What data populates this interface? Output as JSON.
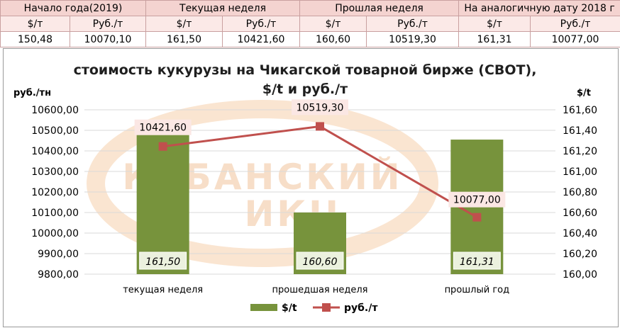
{
  "summary_table": {
    "groups": [
      "Начало года(2019)",
      "Текущая неделя",
      "Прошлая неделя",
      "На аналогичную дату 2018 г"
    ],
    "subheaders": [
      "$/т",
      "Руб./т",
      "$/т",
      "Руб./т",
      "$/т",
      "Руб./т",
      "$/т",
      "Руб./т"
    ],
    "values": [
      "150,48",
      "10070,10",
      "161,50",
      "10421,60",
      "160,60",
      "10519,30",
      "161,31",
      "10077,00"
    ]
  },
  "watermark": {
    "line1": "КУБАНСКИЙ",
    "line2": "ИКЦ"
  },
  "colors": {
    "bar": "#77933c",
    "line": "#c0504d",
    "label_bg": "#fbe7e4"
  },
  "chart_data": {
    "type": "bar",
    "title": "стоимость кукурузы на Чикагской товарной бирже (CBOT), $/t и руб./т",
    "title_lines": [
      "стоимость кукурузы на Чикагской товарной бирже (CBOT),",
      "$/t и руб./т"
    ],
    "left_axis_unit": "руб./тн",
    "right_axis_unit": "$/t",
    "categories": [
      "текущая неделя",
      "прошедшая неделя",
      "прошлый год"
    ],
    "series": [
      {
        "name": "$/t",
        "type": "bar",
        "axis": "right",
        "values": [
          161.5,
          160.6,
          161.31
        ],
        "labels": [
          "161,50",
          "160,60",
          "161,31"
        ]
      },
      {
        "name": "руб./т",
        "type": "line",
        "axis": "left",
        "values": [
          10421.6,
          10519.3,
          10077.0
        ],
        "labels": [
          "10421,60",
          "10519,30",
          "10077,00"
        ]
      }
    ],
    "left_axis": {
      "ylim": [
        9800,
        10600
      ],
      "ticks": [
        "9800,00",
        "9900,00",
        "10000,00",
        "10100,00",
        "10200,00",
        "10300,00",
        "10400,00",
        "10500,00",
        "10600,00"
      ]
    },
    "right_axis": {
      "ylim": [
        160.0,
        161.6
      ],
      "ticks": [
        "160,00",
        "160,20",
        "160,40",
        "160,60",
        "160,80",
        "161,00",
        "161,20",
        "161,40",
        "161,60"
      ]
    },
    "legend_position": "bottom",
    "grid": true
  }
}
